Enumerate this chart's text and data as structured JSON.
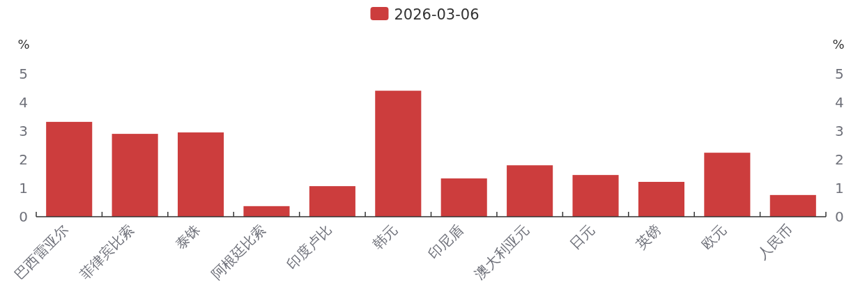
{
  "chart_data": {
    "type": "bar",
    "categories": [
      "巴西雷亚尔",
      "菲律宾比索",
      "泰铢",
      "阿根廷比索",
      "印度卢比",
      "韩元",
      "印尼盾",
      "澳大利亚元",
      "日元",
      "英镑",
      "欧元",
      "人民币"
    ],
    "series": [
      {
        "name": "2026-03-06",
        "color": "#cc3d3d",
        "values": [
          3.32,
          2.9,
          2.95,
          0.37,
          1.07,
          4.41,
          1.34,
          1.8,
          1.46,
          1.22,
          2.24,
          0.76
        ]
      }
    ],
    "ylabel": "%",
    "y2label": "%",
    "ylim": [
      0,
      5
    ],
    "yticks": [
      0,
      1,
      2,
      3,
      4,
      5
    ],
    "y2lim": [
      0,
      5
    ],
    "y2ticks": [
      0,
      1,
      2,
      3,
      4,
      5
    ],
    "legend": "top",
    "grid": false
  }
}
